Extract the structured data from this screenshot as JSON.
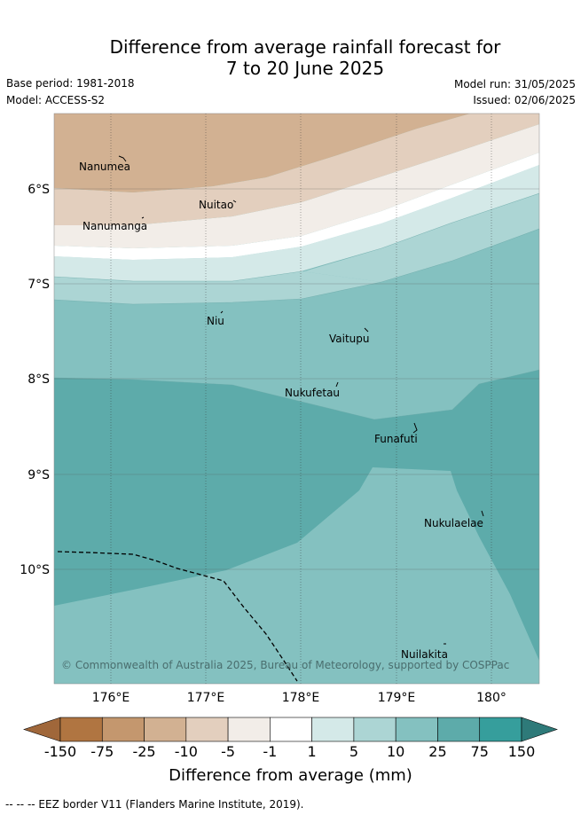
{
  "header": {
    "title_line1": "Difference from average rainfall forecast for",
    "title_line2": "7 to 20 June 2025",
    "base_period": "Base period: 1981-2018",
    "model": "Model: ACCESS-S2",
    "model_run": "Model run: 31/05/2025",
    "issued": "Issued: 02/06/2025"
  },
  "map": {
    "islands": [
      "Nanumea",
      "Nuitao",
      "Nanumanga",
      "Niu",
      "Vaitupu",
      "Nukufetau",
      "Funafuti",
      "Nukulaelae",
      "Nuilakita"
    ],
    "lon_ticks": [
      "176°E",
      "177°E",
      "178°E",
      "179°E",
      "180°"
    ],
    "lat_ticks": [
      "6°S",
      "7°S",
      "8°S",
      "9°S",
      "10°S"
    ],
    "copyright": "© Commonwealth of Australia 2025, Bureau of Meteorology, supported by COSPPac"
  },
  "colorbar": {
    "ticks": [
      "-150",
      "-75",
      "-25",
      "-10",
      "-5",
      "-1",
      "1",
      "5",
      "10",
      "25",
      "75",
      "150"
    ],
    "colors": [
      "#a0673a",
      "#b07541",
      "#c4976e",
      "#d2b192",
      "#e3cfbe",
      "#f2ede8",
      "#ffffff",
      "#d4e9e8",
      "#acd5d4",
      "#84c1c0",
      "#5dabaa",
      "#369e9c",
      "#2e7a79"
    ],
    "label": "Difference from average (mm)"
  },
  "footer": {
    "legend": "-- -- -- EEZ border V11 (Flanders Marine Institute, 2019)."
  }
}
